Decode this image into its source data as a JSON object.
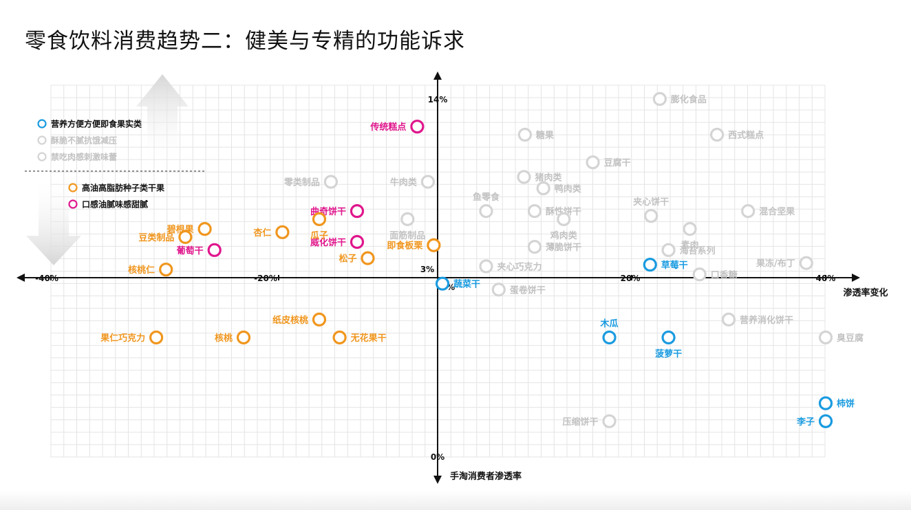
{
  "title": "零食饮料消费趋势二：健美与专精的功能诉求",
  "colors": {
    "blue": "#1a9be0",
    "orange": "#f0961e",
    "magenta": "#e0168c",
    "gray": "#d4d4d4",
    "gray_text": "#c2c2c2",
    "grid": "#e4e4e4",
    "axis": "#111111"
  },
  "legend": {
    "group1": [
      {
        "label": "营养方便方便即食果实类",
        "color_key": "blue",
        "active": true
      },
      {
        "label": "酥脆不腻抗饿减压",
        "color_key": "gray",
        "active": false
      },
      {
        "label": "禁吃肉感刺激味蕾",
        "color_key": "gray",
        "active": false
      }
    ],
    "group2": [
      {
        "label": "高油高脂肪种子类干果",
        "color_key": "orange",
        "active": true
      },
      {
        "label": "口感油腻味感甜腻",
        "color_key": "magenta",
        "active": true
      }
    ]
  },
  "chart_data": {
    "type": "scatter",
    "xlabel": "渗透率变化",
    "ylabel": "手淘消费者渗透率",
    "xlim": [
      -40,
      40
    ],
    "ylim": [
      0,
      14
    ],
    "x_tick_labels": [
      "-40%",
      "-20%",
      "20%",
      "40%"
    ],
    "y_tick_labels": [
      "14%",
      "3%",
      "0%"
    ],
    "origin_label": "0%",
    "points": [
      {
        "name": "传统糕点",
        "x": -2.1,
        "y": 12.3,
        "color_key": "magenta",
        "label_pos": "left"
      },
      {
        "name": "曲奇饼干",
        "x": -8.3,
        "y": 7.1,
        "color_key": "magenta",
        "label_pos": "left"
      },
      {
        "name": "威化饼干",
        "x": -8.3,
        "y": 5.2,
        "color_key": "magenta",
        "label_pos": "left"
      },
      {
        "name": "葡萄干",
        "x": -23.0,
        "y": 4.7,
        "color_key": "magenta",
        "label_pos": "left"
      },
      {
        "name": "碧根果",
        "x": -24.0,
        "y": 6.0,
        "color_key": "orange",
        "label_pos": "left"
      },
      {
        "name": "豆类制品",
        "x": -26.0,
        "y": 5.5,
        "color_key": "orange",
        "label_pos": "left"
      },
      {
        "name": "杏仁",
        "x": -16.0,
        "y": 5.8,
        "color_key": "orange",
        "label_pos": "left"
      },
      {
        "name": "瓜子",
        "x": -12.2,
        "y": 6.6,
        "color_key": "orange",
        "label_pos": "below"
      },
      {
        "name": "即食板栗",
        "x": -0.4,
        "y": 5.0,
        "color_key": "orange",
        "label_pos": "left"
      },
      {
        "name": "松子",
        "x": -7.2,
        "y": 4.2,
        "color_key": "orange",
        "label_pos": "left"
      },
      {
        "name": "核桃仁",
        "x": -28.0,
        "y": 3.5,
        "color_key": "orange",
        "label_pos": "left"
      },
      {
        "name": "果仁巧克力",
        "x": -29.0,
        "y": 2.0,
        "color_key": "orange",
        "label_pos": "left"
      },
      {
        "name": "核桃",
        "x": -20.0,
        "y": 2.0,
        "color_key": "orange",
        "label_pos": "left"
      },
      {
        "name": "纸皮核桃",
        "x": -12.2,
        "y": 2.3,
        "color_key": "orange",
        "label_pos": "left"
      },
      {
        "name": "无花果干",
        "x": -10.1,
        "y": 2.0,
        "color_key": "orange",
        "label_pos": "right"
      },
      {
        "name": "蔬菜干",
        "x": 0.5,
        "y": 2.9,
        "color_key": "blue",
        "label_pos": "right"
      },
      {
        "name": "草莓干",
        "x": 21.9,
        "y": 3.8,
        "color_key": "blue",
        "label_pos": "right"
      },
      {
        "name": "木瓜",
        "x": 17.7,
        "y": 2.0,
        "color_key": "blue",
        "label_pos": "above"
      },
      {
        "name": "菠萝干",
        "x": 23.8,
        "y": 2.0,
        "color_key": "blue",
        "label_pos": "below"
      },
      {
        "name": "柿饼",
        "x": 40.0,
        "y": 0.9,
        "color_key": "blue",
        "label_pos": "right"
      },
      {
        "name": "李子",
        "x": 40.0,
        "y": 0.6,
        "color_key": "blue",
        "label_pos": "left"
      },
      {
        "name": "膨化食品",
        "x": 22.9,
        "y": 14.0,
        "color_key": "gray",
        "label_pos": "right"
      },
      {
        "name": "糖果",
        "x": 9.0,
        "y": 11.8,
        "color_key": "gray",
        "label_pos": "right"
      },
      {
        "name": "西式糕点",
        "x": 28.8,
        "y": 11.8,
        "color_key": "gray",
        "label_pos": "right"
      },
      {
        "name": "豆腐干",
        "x": 16.0,
        "y": 10.1,
        "color_key": "gray",
        "label_pos": "right"
      },
      {
        "name": "猪肉类",
        "x": 8.9,
        "y": 9.2,
        "color_key": "gray",
        "label_pos": "right"
      },
      {
        "name": "鸭肉类",
        "x": 10.9,
        "y": 8.5,
        "color_key": "gray",
        "label_pos": "right"
      },
      {
        "name": "零类制品",
        "x": -11.0,
        "y": 8.9,
        "color_key": "gray",
        "label_pos": "left"
      },
      {
        "name": "牛肉类",
        "x": -1.0,
        "y": 8.9,
        "color_key": "gray",
        "label_pos": "left"
      },
      {
        "name": "鱼零食",
        "x": 5.0,
        "y": 7.1,
        "color_key": "gray",
        "label_pos": "above"
      },
      {
        "name": "酥性饼干",
        "x": 10.0,
        "y": 7.1,
        "color_key": "gray",
        "label_pos": "right"
      },
      {
        "name": "夹心饼干",
        "x": 22.0,
        "y": 6.8,
        "color_key": "gray",
        "label_pos": "above"
      },
      {
        "name": "混合坚果",
        "x": 32.0,
        "y": 7.1,
        "color_key": "gray",
        "label_pos": "right"
      },
      {
        "name": "面筋制品",
        "x": -3.1,
        "y": 6.6,
        "color_key": "gray",
        "label_pos": "below"
      },
      {
        "name": "鸡肉类",
        "x": 13.0,
        "y": 6.6,
        "color_key": "gray",
        "label_pos": "below"
      },
      {
        "name": "素肉",
        "x": 26.0,
        "y": 6.0,
        "color_key": "gray",
        "label_pos": "below"
      },
      {
        "name": "薄脆饼干",
        "x": 10.0,
        "y": 4.9,
        "color_key": "gray",
        "label_pos": "right"
      },
      {
        "name": "海苔系列",
        "x": 23.8,
        "y": 4.7,
        "color_key": "gray",
        "label_pos": "right"
      },
      {
        "name": "果冻/布丁",
        "x": 38.0,
        "y": 3.9,
        "color_key": "gray",
        "label_pos": "left"
      },
      {
        "name": "夹心巧克力",
        "x": 5.0,
        "y": 3.7,
        "color_key": "gray",
        "label_pos": "right"
      },
      {
        "name": "口香糖",
        "x": 27.0,
        "y": 3.2,
        "color_key": "gray",
        "label_pos": "right"
      },
      {
        "name": "蛋卷饼干",
        "x": 6.3,
        "y": 2.8,
        "color_key": "gray",
        "label_pos": "right"
      },
      {
        "name": "营养消化饼干",
        "x": 30.0,
        "y": 2.3,
        "color_key": "gray",
        "label_pos": "right"
      },
      {
        "name": "臭豆腐",
        "x": 40.0,
        "y": 2.0,
        "color_key": "gray",
        "label_pos": "right"
      },
      {
        "name": "压缩饼干",
        "x": 17.7,
        "y": 0.6,
        "color_key": "gray",
        "label_pos": "left"
      }
    ]
  }
}
